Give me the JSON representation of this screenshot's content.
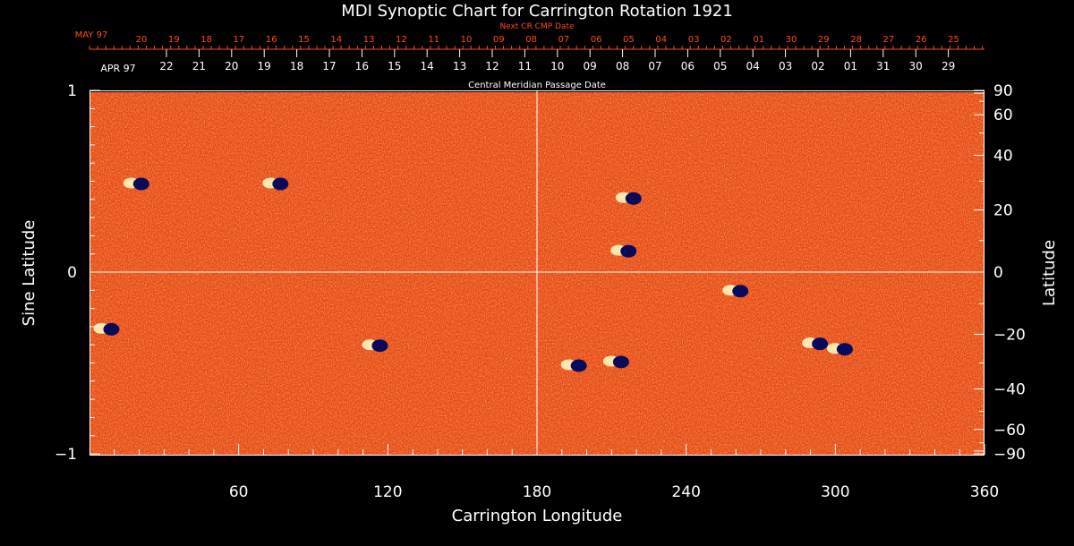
{
  "chart_data": {
    "type": "heatmap",
    "title": "MDI Synoptic Chart for Carrington Rotation 1921",
    "xlabel": "Carrington Longitude",
    "ylabel_left": "Sine Latitude",
    "ylabel_right": "Latitude",
    "top_axis_red_label": "Next CR CMP Date",
    "top_axis_white_label": "Central Meridian Passage Date",
    "xlim": [
      0,
      360
    ],
    "ylim": [
      -1,
      1
    ],
    "x_ticks": [
      "60",
      "120",
      "180",
      "240",
      "300",
      "360"
    ],
    "y_left_ticks": [
      "1",
      "0",
      "−1"
    ],
    "y_right_ticks": [
      "90",
      "60",
      "40",
      "20",
      "0",
      "−20",
      "−40",
      "−60",
      "−90"
    ],
    "red_date_start": "MAY 97",
    "red_dates": [
      "20",
      "19",
      "18",
      "17",
      "16",
      "15",
      "14",
      "13",
      "12",
      "11",
      "10",
      "09",
      "08",
      "07",
      "06",
      "05",
      "04",
      "03",
      "02",
      "01",
      "30",
      "29",
      "28",
      "27",
      "26",
      "25"
    ],
    "white_date_start": "APR 97",
    "white_dates": [
      "22",
      "21",
      "20",
      "19",
      "18",
      "17",
      "16",
      "15",
      "14",
      "13",
      "12",
      "11",
      "10",
      "09",
      "08",
      "07",
      "06",
      "05",
      "04",
      "03",
      "02",
      "01",
      "31",
      "30",
      "29"
    ],
    "active_regions": [
      {
        "lon": 7,
        "sinlat": -0.31
      },
      {
        "lon": 19,
        "sinlat": 0.49
      },
      {
        "lon": 75,
        "sinlat": 0.49
      },
      {
        "lon": 115,
        "sinlat": -0.4
      },
      {
        "lon": 195,
        "sinlat": -0.51
      },
      {
        "lon": 217,
        "sinlat": 0.41
      },
      {
        "lon": 215,
        "sinlat": 0.12
      },
      {
        "lon": 212,
        "sinlat": -0.49
      },
      {
        "lon": 260,
        "sinlat": -0.1
      },
      {
        "lon": 292,
        "sinlat": -0.39
      },
      {
        "lon": 302,
        "sinlat": -0.42
      }
    ],
    "colors": {
      "field_base": "#e8421b",
      "positive": "#fff6c0",
      "negative": "#0a0a5a",
      "axis": "#ffffff",
      "red_axis": "#ff4a1a"
    }
  }
}
